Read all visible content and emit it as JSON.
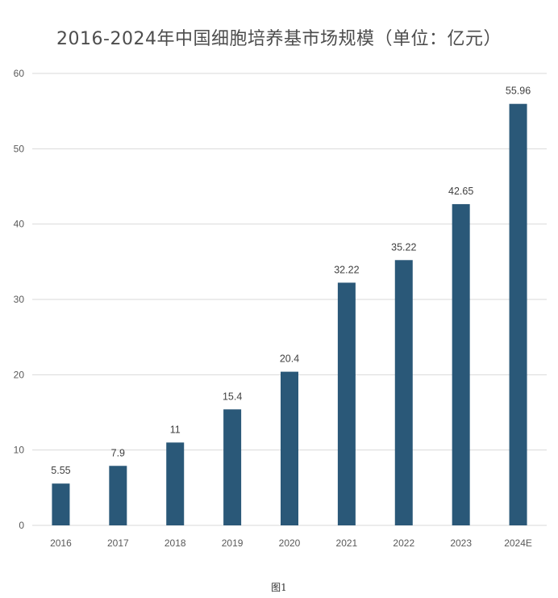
{
  "chart_data": {
    "type": "bar",
    "title": "2016-2024年中国细胞培养基市场规模（单位：亿元）",
    "categories": [
      "2016",
      "2017",
      "2018",
      "2019",
      "2020",
      "2021",
      "2022",
      "2023",
      "2024E"
    ],
    "values": [
      5.55,
      7.9,
      11,
      15.4,
      20.4,
      32.22,
      35.22,
      42.65,
      55.96
    ],
    "value_labels": [
      "5.55",
      "7.9",
      "11",
      "15.4",
      "20.4",
      "32.22",
      "35.22",
      "42.65",
      "55.96"
    ],
    "ylim": [
      0,
      60
    ],
    "yticks": [
      0,
      10,
      20,
      30,
      40,
      50,
      60
    ],
    "grid": true,
    "legend": "none",
    "bar_color": "#2a5878",
    "grid_color": "#d9d9d9"
  },
  "caption": "图1"
}
